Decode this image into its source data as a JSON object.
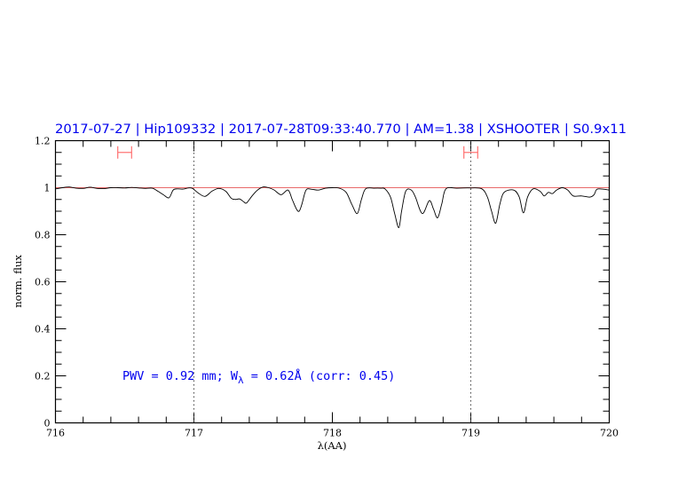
{
  "chart_data": {
    "type": "line",
    "title": "2017-07-27  |  Hip109332  |  2017-07-28T09:33:40.770  |  AM=1.38  |  XSHOOTER  |  S0.9x11",
    "xlabel": "λ(AA)",
    "ylabel": "norm. flux",
    "xlim": [
      716,
      720
    ],
    "ylim": [
      0,
      1.2
    ],
    "x_ticks": [
      "716",
      "717",
      "718",
      "719",
      "720"
    ],
    "y_ticks": [
      "0",
      "0.2",
      "0.4",
      "0.6",
      "0.8",
      "1",
      "1.2"
    ],
    "x_major_step": 1,
    "x_minor_step": 0.2,
    "y_major_step": 0.2,
    "y_minor_step": 0.05,
    "grid": false,
    "reference_line": {
      "y": 1.0,
      "color": "#e86a6a"
    },
    "vertical_dotted_lines": [
      717,
      719
    ],
    "error_bars": [
      {
        "x": 716.5,
        "xerr": 0.05,
        "y": 1.15,
        "color": "#ff7070"
      },
      {
        "x": 719.0,
        "xerr": 0.05,
        "y": 1.15,
        "color": "#ff7070"
      }
    ],
    "annotation": "PWV = 0.92 mm; W",
    "annotation_sub": "λ",
    "annotation_rest": " = 0.62Å (corr: 0.45)",
    "text_color": "#0000ee",
    "series": [
      {
        "color": "#000000",
        "x": [
          716.0,
          716.05,
          716.1,
          716.15,
          716.2,
          716.25,
          716.3,
          716.35,
          716.4,
          716.45,
          716.5,
          716.55,
          716.6,
          716.65,
          716.7,
          716.74,
          716.78,
          716.82,
          716.85,
          716.88,
          716.92,
          716.96,
          716.99,
          717.03,
          717.08,
          717.13,
          717.18,
          717.23,
          717.27,
          717.3,
          717.33,
          717.36,
          717.38,
          717.42,
          717.46,
          717.5,
          717.54,
          717.58,
          717.63,
          717.68,
          717.71,
          717.74,
          717.76,
          717.78,
          717.81,
          717.85,
          717.9,
          717.95,
          718.0,
          718.05,
          718.1,
          718.14,
          718.18,
          718.21,
          718.24,
          718.3,
          718.35,
          718.38,
          718.42,
          718.45,
          718.48,
          718.5,
          718.53,
          718.57,
          718.6,
          718.65,
          718.7,
          718.73,
          718.76,
          718.79,
          718.82,
          718.9,
          719.0,
          719.08,
          719.12,
          719.15,
          719.18,
          719.21,
          719.24,
          719.31,
          719.35,
          719.38,
          719.41,
          719.45,
          719.5,
          719.53,
          719.56,
          719.59,
          719.62,
          719.66,
          719.7,
          719.74,
          719.8,
          719.86,
          719.89,
          719.91,
          719.95,
          720.0
        ],
        "y": [
          0.995,
          1.0,
          1.003,
          0.998,
          0.997,
          1.002,
          0.997,
          0.996,
          1.0,
          1.0,
          0.999,
          1.001,
          0.999,
          0.997,
          0.998,
          0.985,
          0.97,
          0.957,
          0.99,
          0.995,
          0.994,
          0.999,
          0.997,
          0.978,
          0.963,
          0.985,
          0.997,
          0.985,
          0.955,
          0.95,
          0.952,
          0.94,
          0.935,
          0.965,
          0.99,
          1.003,
          1.0,
          0.99,
          0.97,
          0.99,
          0.95,
          0.91,
          0.9,
          0.93,
          0.99,
          0.993,
          0.99,
          0.998,
          1.0,
          0.998,
          0.98,
          0.93,
          0.89,
          0.95,
          0.995,
          0.998,
          0.998,
          0.995,
          0.96,
          0.89,
          0.83,
          0.9,
          0.985,
          0.99,
          0.96,
          0.89,
          0.945,
          0.91,
          0.872,
          0.93,
          0.995,
          0.998,
          0.999,
          0.995,
          0.96,
          0.9,
          0.849,
          0.93,
          0.98,
          0.99,
          0.96,
          0.893,
          0.96,
          0.995,
          0.985,
          0.965,
          0.98,
          0.975,
          0.99,
          1.0,
          0.99,
          0.965,
          0.965,
          0.96,
          0.97,
          0.993,
          0.994,
          0.99
        ]
      }
    ]
  }
}
